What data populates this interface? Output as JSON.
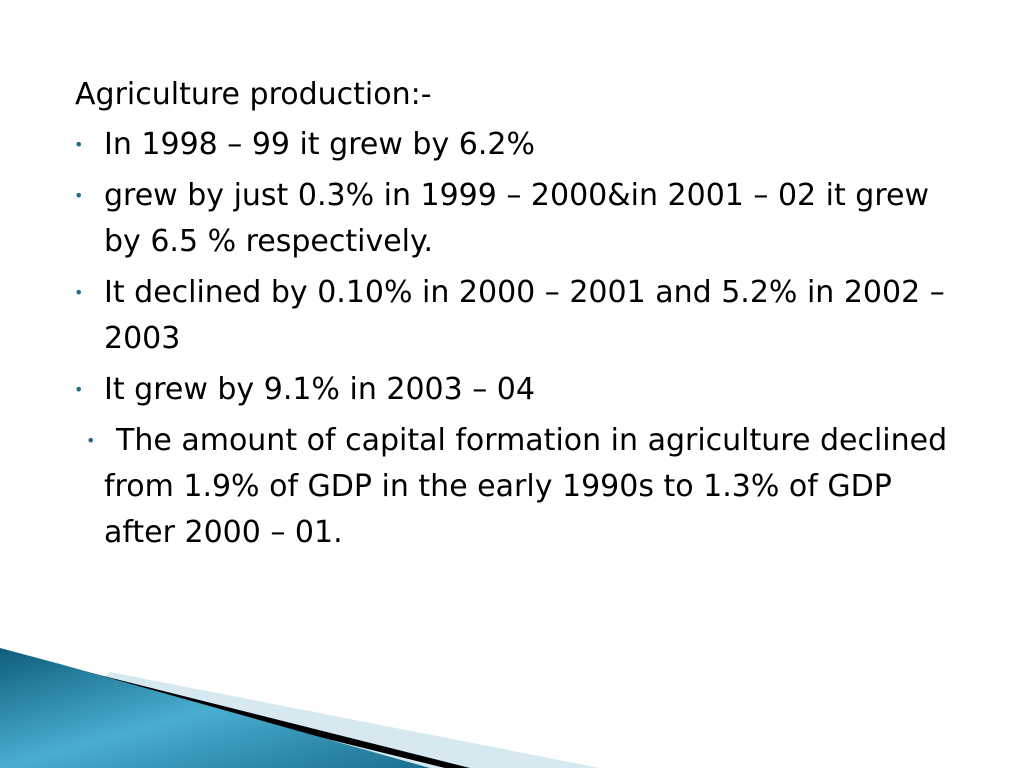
{
  "slide": {
    "heading": "Agriculture production:-",
    "bullets": [
      "In 1998 – 99 it grew by 6.2%",
      "grew by just 0.3% in 1999 – 2000&in 2001 – 02 it grew by 6.5 % respectively.",
      "It declined by 0.10% in 2000 – 2001 and 5.2% in 2002 – 2003",
      "It grew by 9.1% in 2003 – 04",
      "The amount of capital formation in agriculture declined from 1.9% of GDP in the early 1990s to 1.3% of GDP after 2000 – 01."
    ]
  }
}
